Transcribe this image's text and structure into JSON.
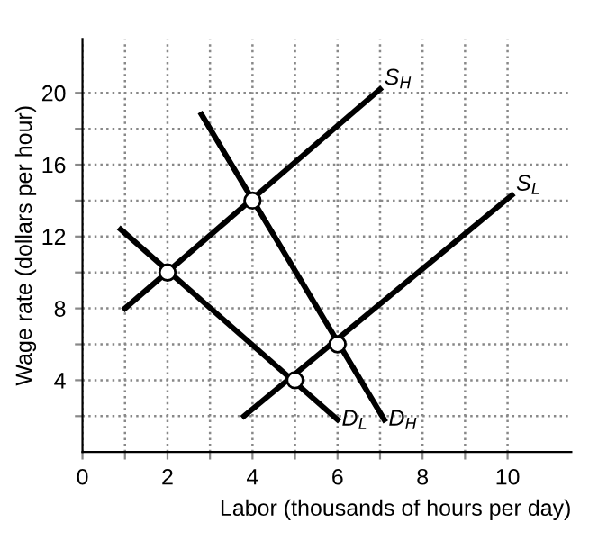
{
  "chart_data": {
    "type": "line",
    "xlabel": "Labor (thousands of hours per day)",
    "ylabel": "Wage rate (dollars per hour)",
    "xlim": [
      0,
      11.5
    ],
    "ylim": [
      0,
      23
    ],
    "xticks": [
      0,
      {
        "value": 1,
        "label": null
      },
      2,
      {
        "value": 3,
        "label": null
      },
      4,
      {
        "value": 5,
        "label": null
      },
      6,
      {
        "value": 7,
        "label": null
      },
      8,
      {
        "value": 9,
        "label": null
      },
      10
    ],
    "yticks": [
      {
        "value": 2,
        "label": null
      },
      4,
      {
        "value": 6,
        "label": null
      },
      8,
      {
        "value": 10,
        "label": null
      },
      12,
      {
        "value": 14,
        "label": null
      },
      16,
      {
        "value": 18,
        "label": null
      },
      20
    ],
    "grid": true,
    "line_style": "solid",
    "legend": false,
    "series": [
      {
        "name": "S$_{H}$",
        "color": "#000000",
        "x": [
          1,
          7
        ],
        "values": [
          8,
          20.2
        ]
      },
      {
        "name": "S$_{L}$",
        "color": "#000000",
        "x": [
          3.8,
          10.1
        ],
        "values": [
          2,
          14.3
        ]
      },
      {
        "name": "D$_{L}$",
        "color": "#000000",
        "x": [
          0.9,
          6
        ],
        "values": [
          12.4,
          1.8
        ]
      },
      {
        "name": "D$_{H}$",
        "color": "#000000",
        "x": [
          2.8,
          7.1
        ],
        "values": [
          18.8,
          1.8
        ]
      },
      {
        "type": "scatter",
        "marker": "circle",
        "color": "#ffffff",
        "x": [
          2,
          4,
          5,
          6
        ],
        "values": [
          10,
          14,
          4,
          6
        ]
      }
    ]
  }
}
